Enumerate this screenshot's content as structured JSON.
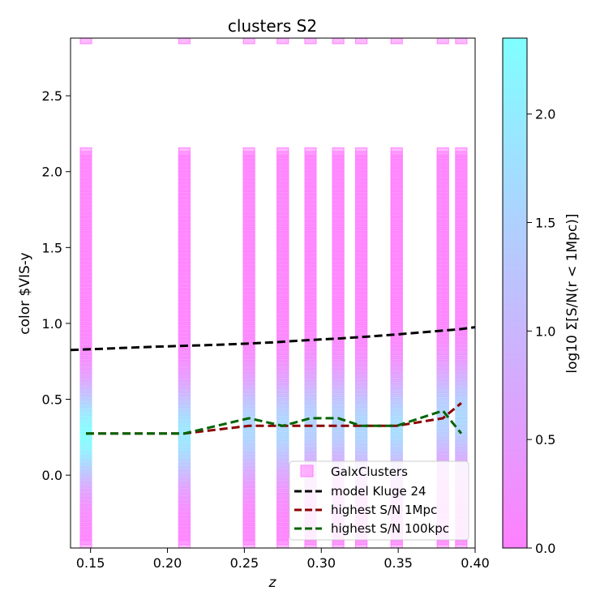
{
  "chart_data": {
    "type": "scatter",
    "title": "clusters S2",
    "xlabel": "z",
    "ylabel": "color $VIS-y",
    "xlim": [
      0.137,
      0.4
    ],
    "ylim": [
      -0.48,
      2.88
    ],
    "xticks": [
      "0.15",
      "0.20",
      "0.25",
      "0.30",
      "0.35",
      "0.40"
    ],
    "xtick_values": [
      0.15,
      0.2,
      0.25,
      0.3,
      0.35,
      0.4
    ],
    "yticks": [
      "0.0",
      "0.5",
      "1.0",
      "1.5",
      "2.0",
      "2.5"
    ],
    "ytick_values": [
      0.0,
      0.5,
      1.0,
      1.5,
      2.0,
      2.5
    ],
    "grid": false,
    "legend_position": "lower-right",
    "colorbar": {
      "label": "log10 Σ[S/N(r < 1Mpc)]",
      "range": [
        0.0,
        2.35
      ],
      "ticks": [
        "0.0",
        "0.5",
        "1.0",
        "1.5",
        "2.0"
      ],
      "tick_values": [
        0.0,
        0.5,
        1.0,
        1.5,
        2.0
      ],
      "color_low": "#ff80ff",
      "color_high": "#80ffff"
    },
    "galx_clusters": {
      "name": "GalxClusters",
      "color_range": "#ff80ff to #80ffff",
      "redshifts": [
        0.147,
        0.211,
        0.253,
        0.275,
        0.293,
        0.311,
        0.326,
        0.349,
        0.379,
        0.391
      ],
      "color_grid": {
        "min": -0.45,
        "max": 2.125,
        "step": 0.025
      },
      "top_marker_y": 2.875,
      "peak_snr": [
        {
          "y": 0.28,
          "log_snr": 2.3
        },
        {
          "y": 0.28,
          "log_snr": 1.9
        },
        {
          "y": 0.32,
          "log_snr": 1.6
        },
        {
          "y": 0.32,
          "log_snr": 1.6
        },
        {
          "y": 0.36,
          "log_snr": 1.5
        },
        {
          "y": 0.36,
          "log_snr": 1.5
        },
        {
          "y": 0.33,
          "log_snr": 1.6
        },
        {
          "y": 0.33,
          "log_snr": 1.7
        },
        {
          "y": 0.4,
          "log_snr": 1.5
        },
        {
          "y": 0.4,
          "log_snr": 1.6
        }
      ]
    },
    "series": [
      {
        "name": "model Kluge 24",
        "color": "#000000",
        "x": [
          0.137,
          0.15,
          0.17,
          0.19,
          0.21,
          0.23,
          0.25,
          0.27,
          0.29,
          0.31,
          0.33,
          0.35,
          0.37,
          0.39,
          0.4
        ],
        "y": [
          0.825,
          0.83,
          0.838,
          0.846,
          0.852,
          0.858,
          0.866,
          0.876,
          0.889,
          0.9,
          0.913,
          0.928,
          0.945,
          0.962,
          0.975
        ]
      },
      {
        "name": "highest S/N 1Mpc",
        "color": "#8b0000",
        "x": [
          0.147,
          0.211,
          0.253,
          0.275,
          0.293,
          0.311,
          0.326,
          0.349,
          0.379,
          0.391
        ],
        "y": [
          0.275,
          0.275,
          0.325,
          0.325,
          0.325,
          0.325,
          0.325,
          0.325,
          0.375,
          0.475
        ]
      },
      {
        "name": "highest S/N 100kpc",
        "color": "#006400",
        "x": [
          0.147,
          0.211,
          0.253,
          0.275,
          0.293,
          0.311,
          0.326,
          0.349,
          0.379,
          0.391
        ],
        "y": [
          0.275,
          0.275,
          0.375,
          0.325,
          0.375,
          0.375,
          0.325,
          0.325,
          0.425,
          0.275
        ]
      }
    ]
  }
}
